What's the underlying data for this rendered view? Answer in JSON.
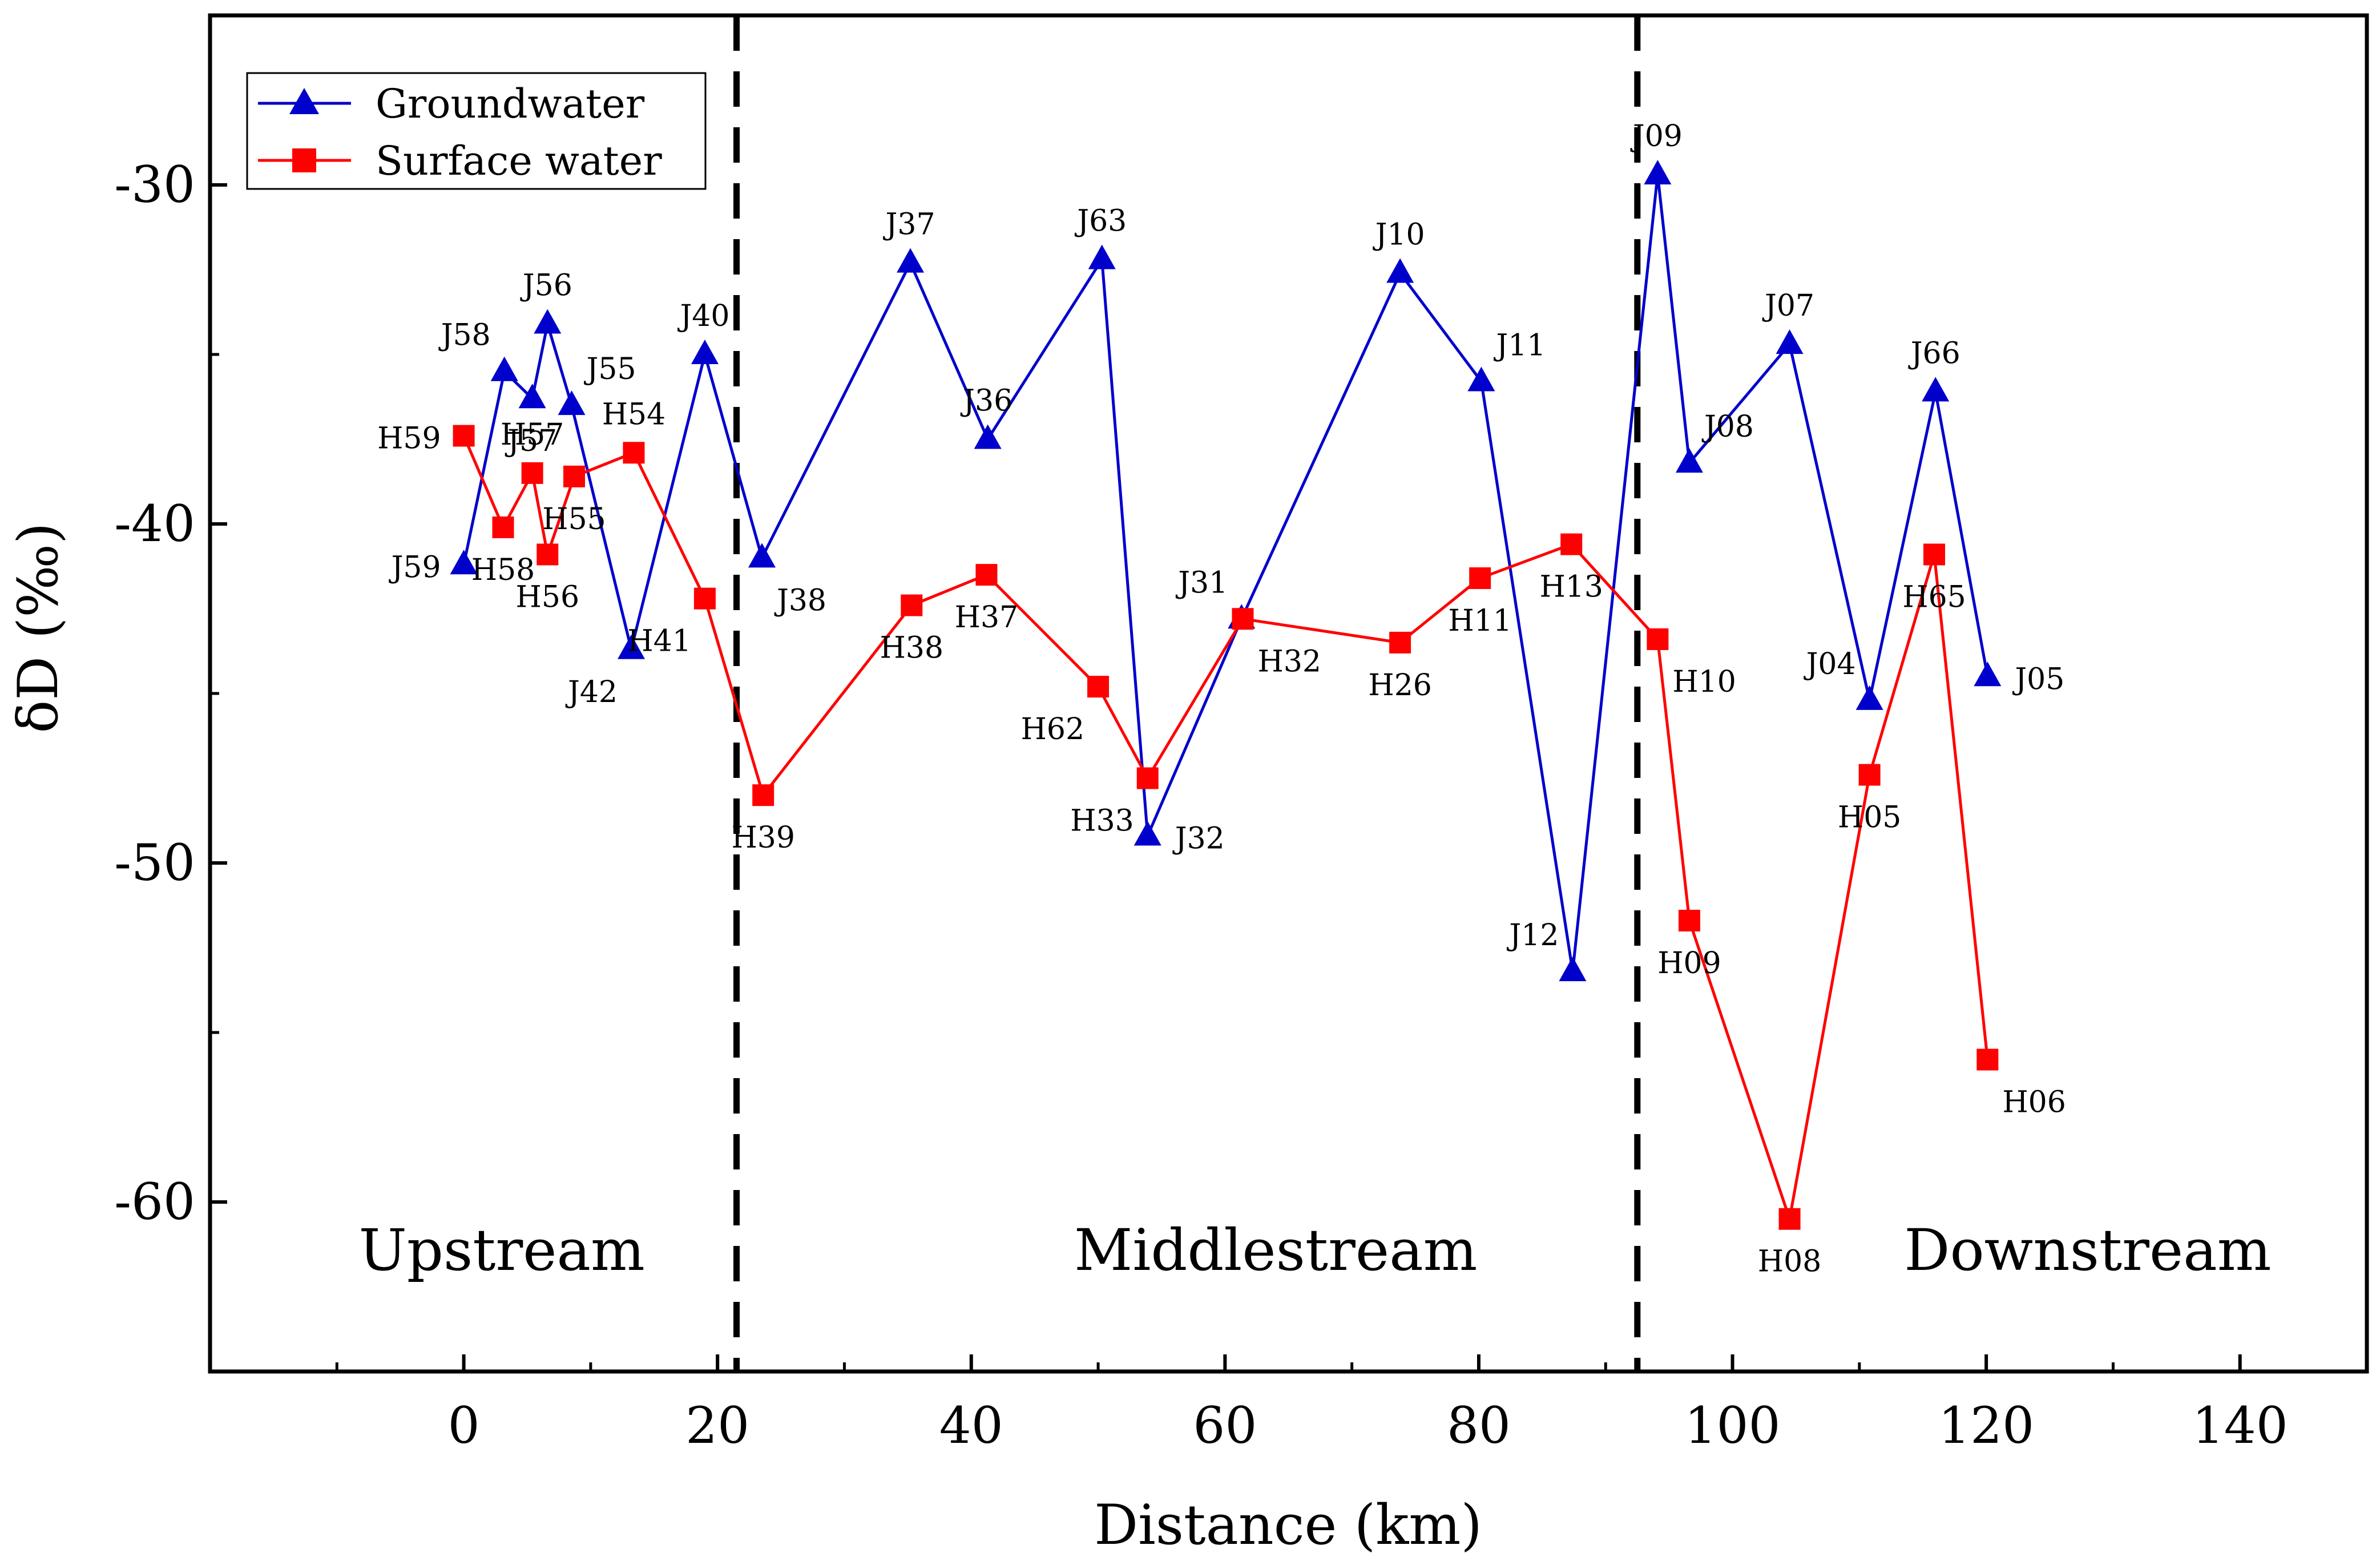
{
  "chart_data": {
    "type": "line",
    "xlabel": "Distance (km)",
    "ylabel": "δD (‰)",
    "xlim": [
      -20,
      150
    ],
    "ylim": [
      -65,
      -25
    ],
    "xticks": [
      0,
      20,
      40,
      60,
      80,
      100,
      120,
      140
    ],
    "xticks_minor": [
      -10,
      10,
      30,
      50,
      70,
      90,
      110,
      130,
      150
    ],
    "yticks": [
      -30,
      -40,
      -50,
      -60
    ],
    "yticks_minor": [
      -35,
      -45,
      -55
    ],
    "xtick_labels": [
      "0",
      "20",
      "40",
      "60",
      "80",
      "100",
      "120",
      "140"
    ],
    "ytick_labels": [
      "-30",
      "-40",
      "-50",
      "-60"
    ],
    "boundaries": [
      21.5,
      92.5
    ],
    "regions": [
      {
        "label": "Upstream",
        "x": 3,
        "y": -62
      },
      {
        "label": "Middlestream",
        "x": 64,
        "y": -62
      },
      {
        "label": "Downstream",
        "x": 128,
        "y": -62
      }
    ],
    "legend": {
      "position": "top-left",
      "entries": [
        "Groundwater",
        "Surface water"
      ]
    },
    "series": [
      {
        "name": "Groundwater",
        "color": "#0000cc",
        "marker": "triangle",
        "points": [
          {
            "x": 0,
            "y": -41.2,
            "label": "J59",
            "anchor": "w"
          },
          {
            "x": 3.2,
            "y": -35.5,
            "label": "J58",
            "anchor": "nw"
          },
          {
            "x": 5.4,
            "y": -36.3,
            "label": "J57",
            "anchor": "s"
          },
          {
            "x": 6.6,
            "y": -34.1,
            "label": "J56",
            "anchor": "n"
          },
          {
            "x": 8.5,
            "y": -36.5,
            "label": "J55",
            "anchor": "ne"
          },
          {
            "x": 13.2,
            "y": -43.7,
            "label": "J42",
            "anchor": "sw"
          },
          {
            "x": 19,
            "y": -35,
            "label": "J40",
            "anchor": "n"
          },
          {
            "x": 23.5,
            "y": -41,
            "label": "J38",
            "anchor": "se"
          },
          {
            "x": 35.2,
            "y": -32.3,
            "label": "J37",
            "anchor": "n"
          },
          {
            "x": 41.3,
            "y": -37.5,
            "label": "J36",
            "anchor": "n"
          },
          {
            "x": 50.3,
            "y": -32.2,
            "label": "J63",
            "anchor": "n"
          },
          {
            "x": 53.9,
            "y": -49.2,
            "label": "J32",
            "anchor": "e"
          },
          {
            "x": 61.3,
            "y": -42.8,
            "label": "J31",
            "anchor": "nw"
          },
          {
            "x": 73.8,
            "y": -32.6,
            "label": "J10",
            "anchor": "n"
          },
          {
            "x": 80.2,
            "y": -35.8,
            "label": "J11",
            "anchor": "ne"
          },
          {
            "x": 87.4,
            "y": -53.2,
            "label": "J12",
            "anchor": "nw"
          },
          {
            "x": 94.1,
            "y": -29.7,
            "label": "J09",
            "anchor": "n"
          },
          {
            "x": 96.6,
            "y": -38.2,
            "label": "J08",
            "anchor": "ne"
          },
          {
            "x": 104.5,
            "y": -34.7,
            "label": "J07",
            "anchor": "n"
          },
          {
            "x": 110.8,
            "y": -45.2,
            "label": "J04",
            "anchor": "nw"
          },
          {
            "x": 116,
            "y": -36.1,
            "label": "J66",
            "anchor": "n"
          },
          {
            "x": 120.1,
            "y": -44.5,
            "label": "J05",
            "anchor": "e"
          }
        ]
      },
      {
        "name": "Surface water",
        "color": "#ff0000",
        "marker": "square",
        "points": [
          {
            "x": 0,
            "y": -37.4,
            "label": "H59",
            "anchor": "w"
          },
          {
            "x": 3.1,
            "y": -40.1,
            "label": "H58",
            "anchor": "s"
          },
          {
            "x": 5.4,
            "y": -38.5,
            "label": "H57",
            "anchor": "n"
          },
          {
            "x": 6.6,
            "y": -40.9,
            "label": "H56",
            "anchor": "s"
          },
          {
            "x": 8.7,
            "y": -38.6,
            "label": "H55",
            "anchor": "s"
          },
          {
            "x": 13.4,
            "y": -37.9,
            "label": "H54",
            "anchor": "n"
          },
          {
            "x": 19,
            "y": -42.2,
            "label": "H41",
            "anchor": "sw"
          },
          {
            "x": 23.6,
            "y": -48,
            "label": "H39",
            "anchor": "s"
          },
          {
            "x": 35.3,
            "y": -42.4,
            "label": "H38",
            "anchor": "s"
          },
          {
            "x": 41.2,
            "y": -41.5,
            "label": "H37",
            "anchor": "s"
          },
          {
            "x": 50,
            "y": -44.8,
            "label": "H62",
            "anchor": "sw"
          },
          {
            "x": 53.9,
            "y": -47.5,
            "label": "H33",
            "anchor": "sw"
          },
          {
            "x": 61.4,
            "y": -42.8,
            "label": "H32",
            "anchor": "se"
          },
          {
            "x": 73.8,
            "y": -43.5,
            "label": "H26",
            "anchor": "s"
          },
          {
            "x": 80.1,
            "y": -41.6,
            "label": "H11",
            "anchor": "s"
          },
          {
            "x": 87.3,
            "y": -40.6,
            "label": "H13",
            "anchor": "s"
          },
          {
            "x": 94.1,
            "y": -43.4,
            "label": "H10",
            "anchor": "se"
          },
          {
            "x": 96.6,
            "y": -51.7,
            "label": "H09",
            "anchor": "s"
          },
          {
            "x": 104.5,
            "y": -60.5,
            "label": "H08",
            "anchor": "s"
          },
          {
            "x": 110.8,
            "y": -47.4,
            "label": "H05",
            "anchor": "s"
          },
          {
            "x": 115.9,
            "y": -40.9,
            "label": "H65",
            "anchor": "s"
          },
          {
            "x": 120.1,
            "y": -55.8,
            "label": "H06",
            "anchor": "se"
          }
        ]
      }
    ]
  }
}
